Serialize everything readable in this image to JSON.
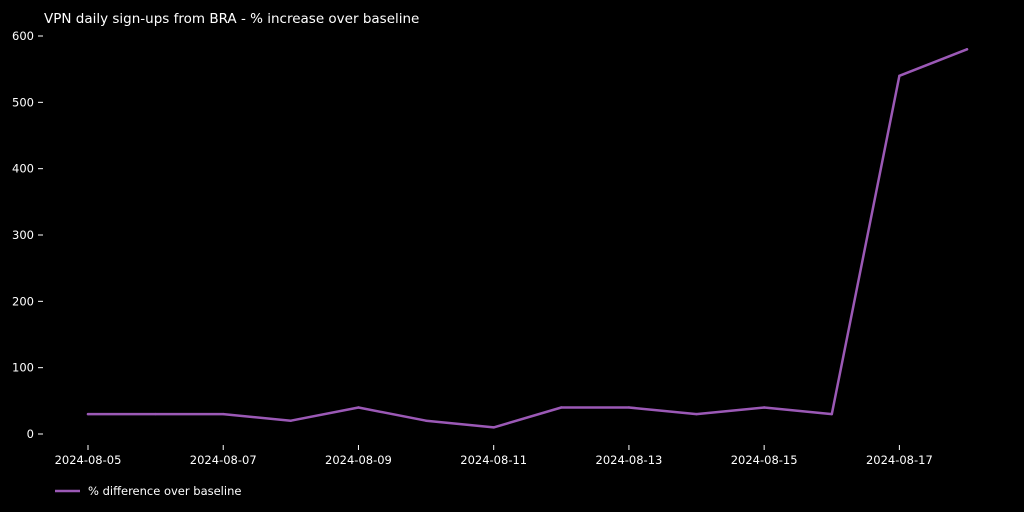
{
  "chart_data": {
    "type": "line",
    "title": "VPN daily sign-ups from BRA - % increase over baseline",
    "xlabel": "",
    "ylabel": "",
    "x": [
      "2024-08-05",
      "2024-08-06",
      "2024-08-07",
      "2024-08-08",
      "2024-08-09",
      "2024-08-10",
      "2024-08-11",
      "2024-08-12",
      "2024-08-13",
      "2024-08-14",
      "2024-08-15",
      "2024-08-16",
      "2024-08-17",
      "2024-08-18"
    ],
    "x_tick_labels": [
      "2024-08-05",
      "2024-08-07",
      "2024-08-09",
      "2024-08-11",
      "2024-08-13",
      "2024-08-15",
      "2024-08-17"
    ],
    "y_tick_labels": [
      "0",
      "100",
      "200",
      "300",
      "400",
      "500",
      "600"
    ],
    "ylim": [
      -20,
      600
    ],
    "grid": false,
    "legend_position": "bottom-left",
    "series": [
      {
        "name": "% difference over baseline",
        "color": "#9b59b6",
        "values": [
          30,
          30,
          30,
          20,
          40,
          20,
          10,
          40,
          40,
          30,
          40,
          30,
          540,
          580
        ]
      }
    ]
  }
}
